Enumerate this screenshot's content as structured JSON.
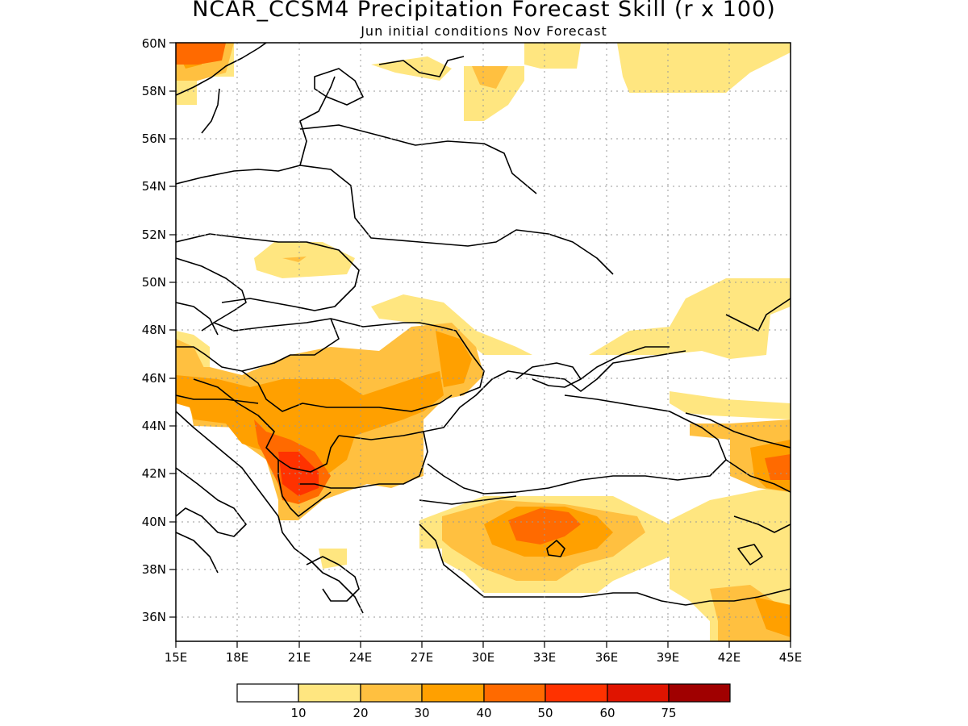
{
  "title": "NCAR_CCSM4 Precipitation Forecast Skill (r x 100)",
  "subtitle": "Jun initial conditions  Nov Forecast",
  "map": {
    "lon_range": [
      15,
      45
    ],
    "lat_range": [
      35,
      60
    ],
    "x_ticks": [
      "15E",
      "18E",
      "21E",
      "24E",
      "27E",
      "30E",
      "33E",
      "36E",
      "39E",
      "42E",
      "45E"
    ],
    "y_ticks": [
      "36N",
      "38N",
      "40N",
      "42N",
      "44N",
      "46N",
      "48N",
      "50N",
      "52N",
      "54N",
      "56N",
      "58N",
      "60N"
    ],
    "gridlines": "dotted"
  },
  "colorbar": {
    "colors": [
      "#ffffff",
      "#ffe680",
      "#ffc040",
      "#ffa000",
      "#ff6a00",
      "#ff3200",
      "#e01400",
      "#a00000"
    ],
    "labels": [
      "10",
      "20",
      "30",
      "40",
      "50",
      "60",
      "75"
    ]
  }
}
